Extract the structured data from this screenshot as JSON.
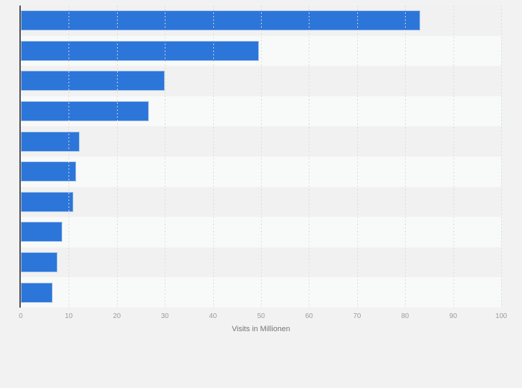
{
  "page": {
    "background_color": "#f2f2f2"
  },
  "chart_data": {
    "type": "bar",
    "orientation": "horizontal",
    "title": "",
    "xlabel": "Visits in Millionen",
    "ylabel": "",
    "xlim": [
      0,
      100
    ],
    "x_ticks": [
      0,
      10,
      20,
      30,
      40,
      50,
      60,
      70,
      80,
      90,
      100
    ],
    "grid": "vertical dashed gridlines at each x tick",
    "legend_position": "none",
    "category_labels_visible": false,
    "values": [
      83.2,
      49.6,
      30,
      26.7,
      12.3,
      11.5,
      10.9,
      8.6,
      7.7,
      6.6
    ],
    "bar_color": "#2d76d9",
    "bar_border_color": "#aac7ed",
    "row_stripe_colors": [
      "#f1f1f1",
      "#f8f9f9"
    ],
    "axis_line_color": "#4b4b4b",
    "gridline_color": "#d9d9d9",
    "tick_label_color": "#9b9b9b",
    "axis_title_color": "#757575"
  }
}
